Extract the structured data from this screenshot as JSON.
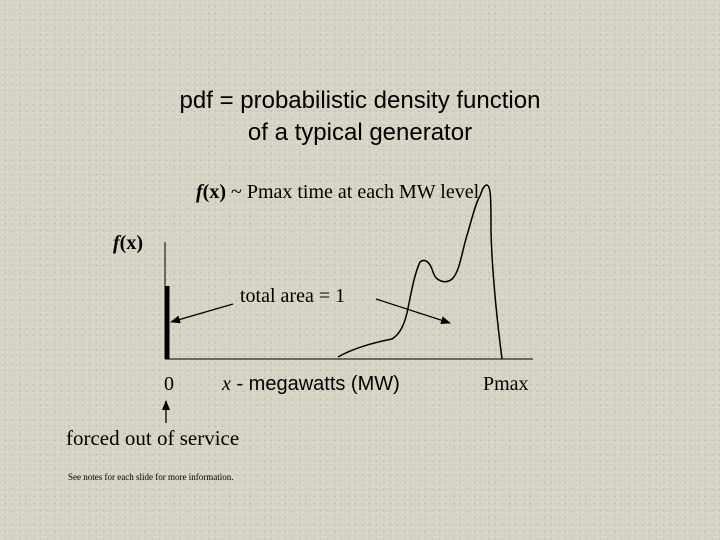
{
  "slide": {
    "title_line1": "pdf = probabilistic density function",
    "title_line2": "of a typical generator",
    "definition_fx": "f",
    "definition_paren": "(x)",
    "definition_rest": " ~ Pmax time at each MW level",
    "ylabel_f": "f",
    "ylabel_paren": "(x)",
    "area_label": "total area = 1",
    "x_origin": "0",
    "x_axis_var": "x",
    "x_axis_label": " - megawatts (MW)",
    "x_max_label": "Pmax",
    "forced_out_label": "forced out of service",
    "footnote": "See notes for each slide for more information."
  }
}
